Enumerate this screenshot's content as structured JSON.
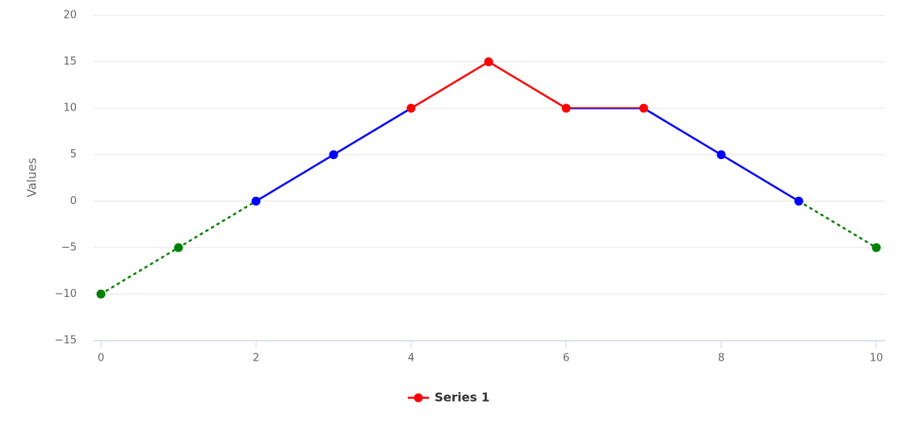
{
  "chart_data": {
    "type": "line",
    "x": [
      0,
      1,
      2,
      3,
      4,
      5,
      6,
      7,
      8,
      9,
      10
    ],
    "series": [
      {
        "name": "Series 1",
        "color": "red",
        "values": [
          -10,
          -5,
          0,
          5,
          10,
          15,
          10,
          10,
          5,
          0,
          -5
        ]
      }
    ],
    "zones": [
      {
        "value": 0,
        "color": "green",
        "dash": "dot"
      },
      {
        "value": 10,
        "color": "blue"
      },
      {
        "color": "red"
      }
    ],
    "xlim": [
      0,
      10
    ],
    "xticks": [
      0,
      2,
      4,
      6,
      8,
      10
    ],
    "ylim": [
      -15,
      20
    ],
    "yticks": [
      {
        "value": -15,
        "label": "−15"
      },
      {
        "value": -10,
        "label": "−10"
      },
      {
        "value": -5,
        "label": "−5"
      },
      0,
      5,
      10,
      15,
      20
    ],
    "y_label": "Values",
    "grid": true,
    "legend": "bottom"
  }
}
